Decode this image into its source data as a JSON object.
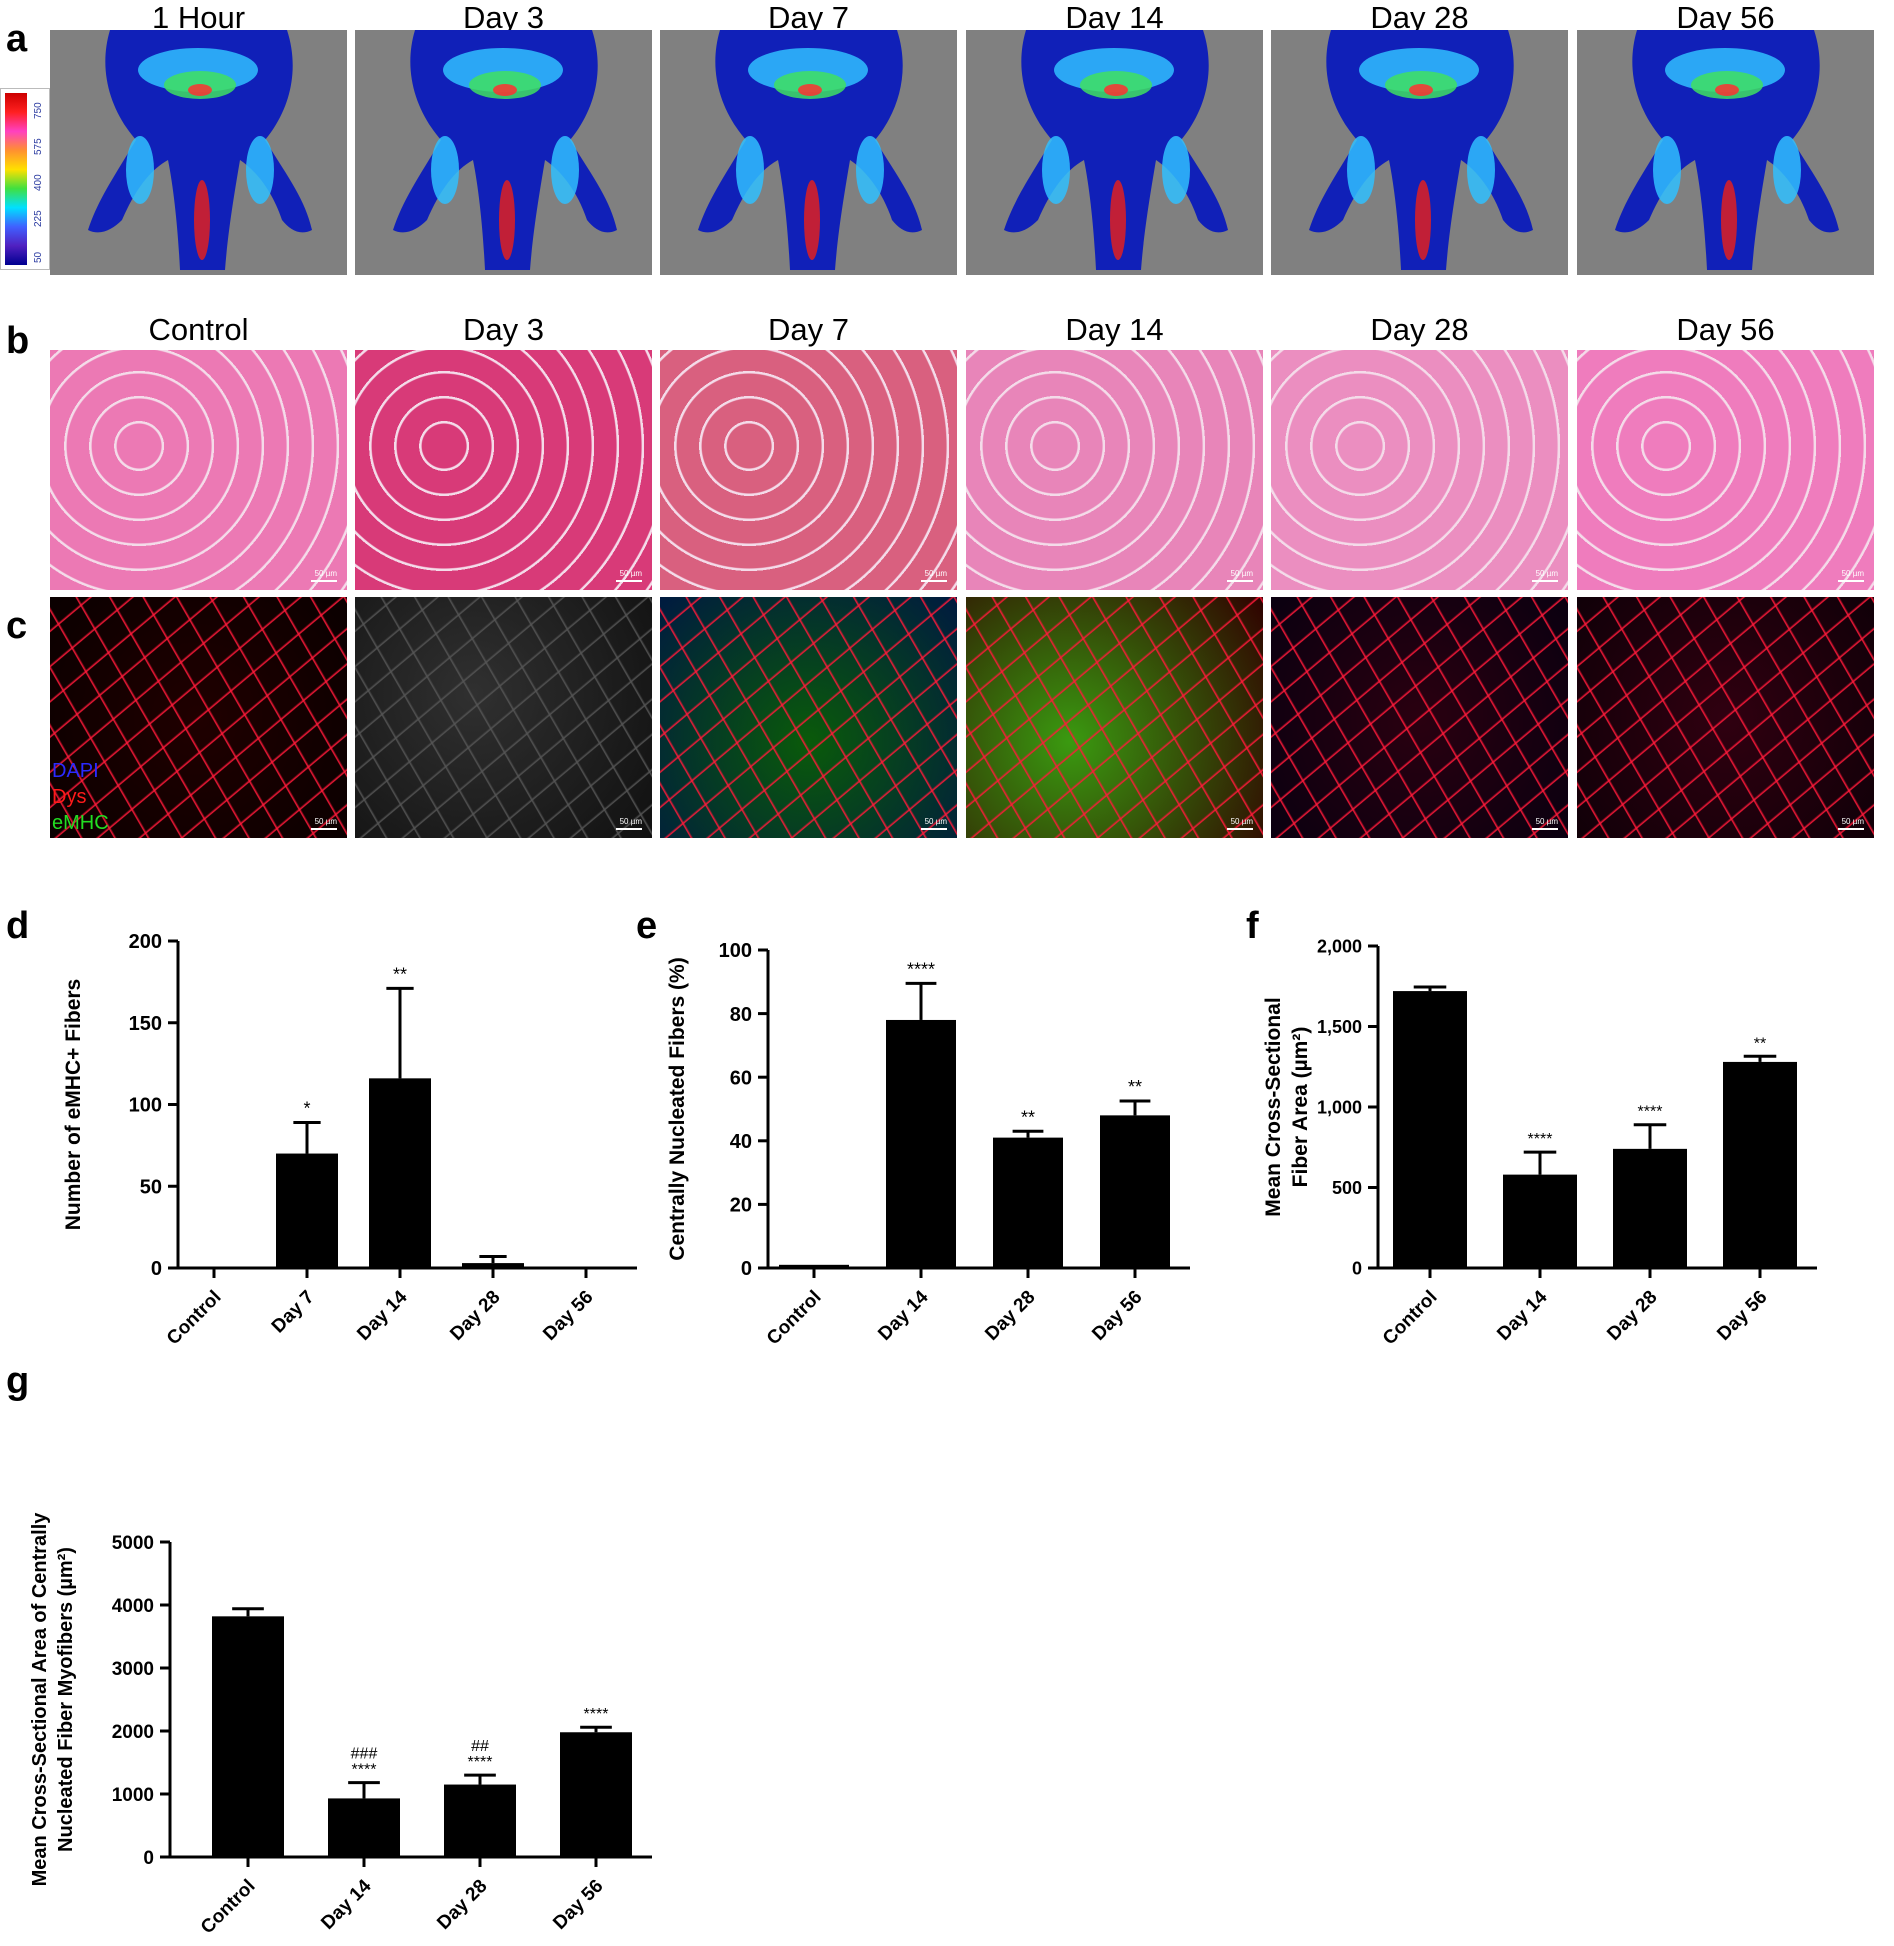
{
  "panels": {
    "a": {
      "letter": "a",
      "columns": [
        "1 Hour",
        "Day 3",
        "Day 7",
        "Day 14",
        "Day 28",
        "Day 56"
      ],
      "colorbar_ticks": [
        "750",
        "575",
        "400",
        "225",
        "50"
      ],
      "colorbar_colors": [
        "#cc0000",
        "#ff2020",
        "#ff40c0",
        "#ff9030",
        "#ffe000",
        "#40e040",
        "#00e0ff",
        "#4060ff",
        "#5020c0",
        "#000090"
      ]
    },
    "b": {
      "letter": "b",
      "columns": [
        "Control",
        "Day 3",
        "Day 7",
        "Day 14",
        "Day 28",
        "Day 56"
      ],
      "scalebar": "50 µm"
    },
    "c": {
      "letter": "c",
      "legend": [
        {
          "label": "DAPI",
          "color": "#2a2aff"
        },
        {
          "label": "Dys",
          "color": "#ff1a1a"
        },
        {
          "label": "eMHC",
          "color": "#22dd22"
        }
      ],
      "scalebar": "50 µm"
    }
  },
  "chart_data": [
    {
      "id": "d",
      "letter": "d",
      "type": "bar",
      "ylabel": "Number of eMHC+ Fibers",
      "categories": [
        "Control",
        "Day 7",
        "Day 14",
        "Day 28",
        "Day 56"
      ],
      "values": [
        0,
        70,
        116,
        3,
        0
      ],
      "errors": [
        0,
        19,
        55,
        4,
        0
      ],
      "annotations": [
        "",
        "*",
        "**",
        "",
        ""
      ],
      "ylim": [
        0,
        200
      ],
      "yticks": [
        0,
        50,
        100,
        150,
        200
      ],
      "ytick_labels": [
        "0",
        "50",
        "100",
        "150",
        "200"
      ]
    },
    {
      "id": "e",
      "letter": "e",
      "type": "bar",
      "ylabel": "Centrally Nucleated  Fibers (%)",
      "categories": [
        "Control",
        "Day 14",
        "Day 28",
        "Day 56"
      ],
      "values": [
        1,
        78,
        41,
        48
      ],
      "errors": [
        0,
        11.5,
        2,
        4.5
      ],
      "annotations": [
        "",
        "****",
        "**",
        "**"
      ],
      "ylim": [
        0,
        100
      ],
      "yticks": [
        0,
        20,
        40,
        60,
        80,
        100
      ],
      "ytick_labels": [
        "0",
        "20",
        "40",
        "60",
        "80",
        "100"
      ]
    },
    {
      "id": "f",
      "letter": "f",
      "type": "bar",
      "ylabel_lines": [
        "Mean Cross-Sectional",
        "Fiber Area (µm²)"
      ],
      "categories": [
        "Control",
        "Day 14",
        "Day 28",
        "Day 56"
      ],
      "values": [
        1720,
        580,
        740,
        1280
      ],
      "errors": [
        25,
        140,
        150,
        35
      ],
      "annotations": [
        "",
        "****",
        "****",
        "**"
      ],
      "ylim": [
        0,
        2000
      ],
      "yticks": [
        0,
        500,
        1000,
        1500,
        2000
      ],
      "ytick_labels": [
        "0",
        "500",
        "1,000",
        "1,500",
        "2,000"
      ]
    },
    {
      "id": "g",
      "letter": "g",
      "type": "bar",
      "ylabel_lines": [
        "Mean Cross-Sectional Area of Centrally",
        "Nucleated Fiber Myofibers (µm²)"
      ],
      "categories": [
        "Control",
        "Day 14",
        "Day 28",
        "Day 56"
      ],
      "values": [
        3820,
        930,
        1150,
        1980
      ],
      "errors": [
        120,
        250,
        150,
        80
      ],
      "annotations": [
        "",
        "****",
        "****",
        "****"
      ],
      "annotations2": [
        "",
        "###",
        "##",
        ""
      ],
      "ylim": [
        0,
        5000
      ],
      "yticks": [
        0,
        1000,
        2000,
        3000,
        4000,
        5000
      ],
      "ytick_labels": [
        "0",
        "1000",
        "2000",
        "3000",
        "4000",
        "5000"
      ]
    }
  ]
}
